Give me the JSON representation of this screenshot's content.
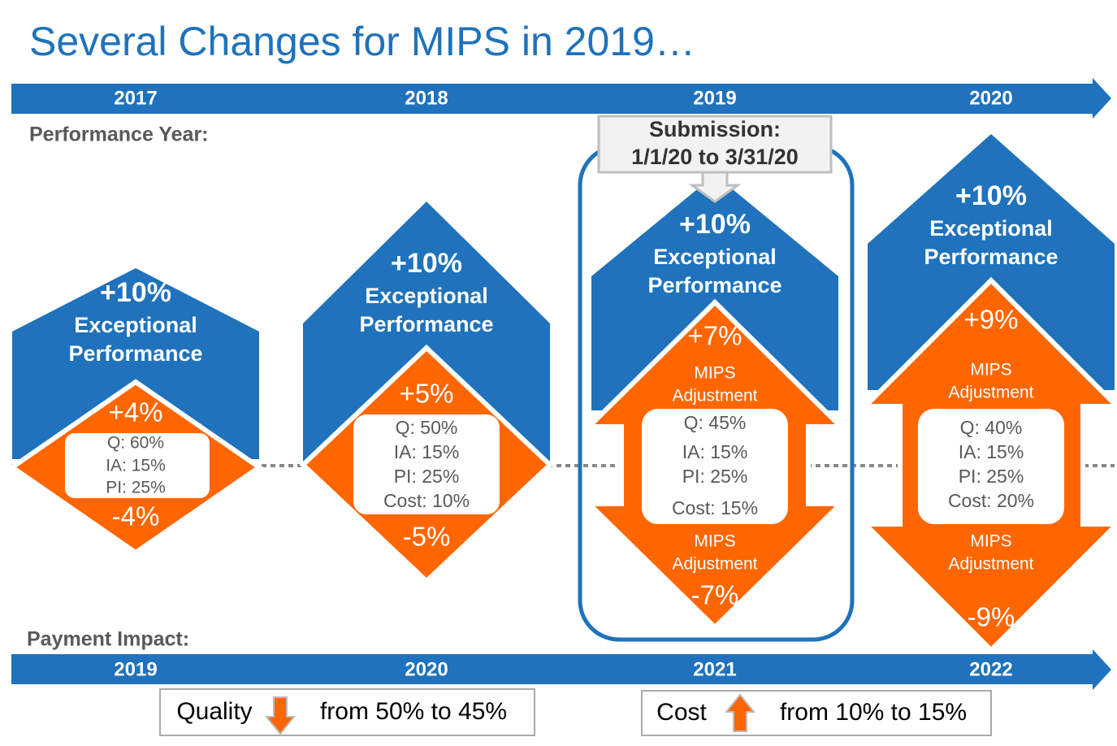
{
  "title": "Several Changes for MIPS in 2019…",
  "performance_year_label": "Performance Year:",
  "performance_years": [
    "2017",
    "2018",
    "2019",
    "2020"
  ],
  "payment_impact_label": "Payment Impact:",
  "payment_years": [
    "2019",
    "2020",
    "2021",
    "2022"
  ],
  "submission": {
    "line1": "Submission:",
    "line2": "1/1/20 to 3/31/20"
  },
  "columns": [
    {
      "bonus": "+10%",
      "bonus_label": [
        "Exceptional",
        "Performance"
      ],
      "max": "+4%",
      "weights": [
        "Q: 60%",
        "IA: 15%",
        "PI: 25%"
      ],
      "min": "-4%"
    },
    {
      "bonus": "+10%",
      "bonus_label": [
        "Exceptional",
        "Performance"
      ],
      "max": "+5%",
      "weights": [
        "Q: 50%",
        "IA: 15%",
        "PI: 25%",
        "Cost: 10%"
      ],
      "min": "-5%"
    },
    {
      "bonus": "+10%",
      "bonus_label": [
        "Exceptional",
        "Performance"
      ],
      "max": "+7%",
      "max_label": [
        "MIPS",
        "Adjustment"
      ],
      "weights": [
        "Q: 45%",
        "IA: 15%",
        "PI: 25%",
        "Cost: 15%"
      ],
      "min_label": [
        "MIPS",
        "Adjustment"
      ],
      "min": "-7%"
    },
    {
      "bonus": "+10%",
      "bonus_label": [
        "Exceptional",
        "Performance"
      ],
      "max": "+9%",
      "max_label": [
        "MIPS",
        "Adjustment"
      ],
      "weights": [
        "Q: 40%",
        "IA: 15%",
        "PI: 25%",
        "Cost: 20%"
      ],
      "min_label": [
        "MIPS",
        "Adjustment"
      ],
      "min": "-9%"
    }
  ],
  "notes": [
    {
      "before": "Quality",
      "after": "from 50% to 45%"
    },
    {
      "before": "Cost",
      "after": "from 10% to 15%"
    }
  ]
}
